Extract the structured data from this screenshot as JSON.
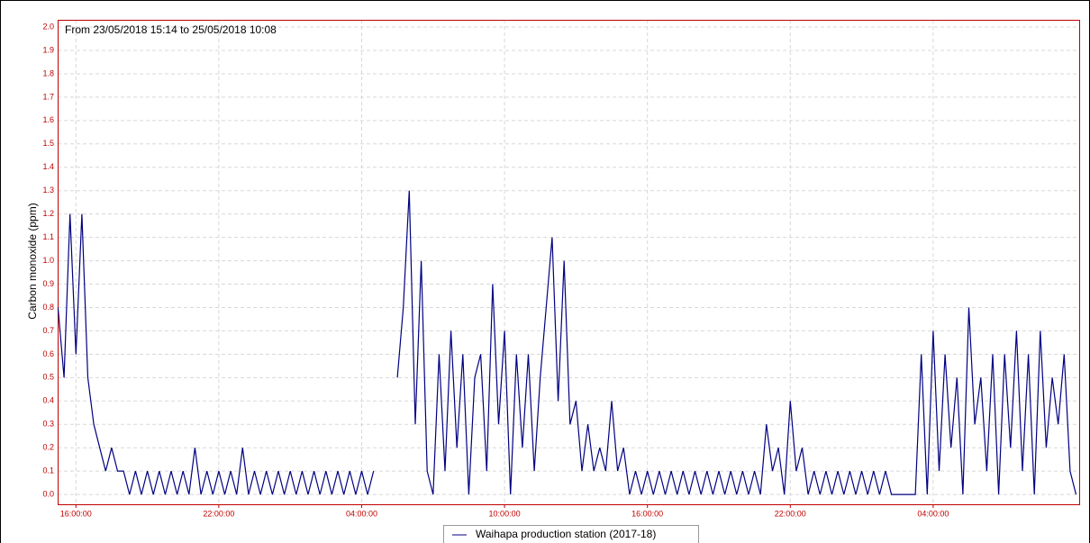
{
  "chart_data": {
    "type": "line",
    "title": "From 23/05/2018 15:14 to 25/05/2018 10:08",
    "y_label": "Carbon monoxide (ppm)",
    "x": [
      15.25,
      15.5,
      15.75,
      16,
      16.25,
      16.5,
      16.75,
      17,
      17.25,
      17.5,
      17.75,
      18,
      18.25,
      18.5,
      18.75,
      19,
      19.25,
      19.5,
      19.75,
      20,
      20.25,
      20.5,
      20.75,
      21,
      21.25,
      21.5,
      21.75,
      22,
      22.25,
      22.5,
      22.75,
      23,
      23.25,
      23.5,
      23.75,
      24,
      24.25,
      24.5,
      24.75,
      25,
      25.25,
      25.5,
      25.75,
      26,
      26.25,
      26.5,
      26.75,
      27,
      27.25,
      27.5,
      27.75,
      28,
      28.25,
      28.5,
      28.75,
      29,
      29.25,
      29.5,
      29.75,
      30,
      30.25,
      30.5,
      30.75,
      31,
      31.25,
      31.5,
      31.75,
      32,
      32.25,
      32.5,
      32.75,
      33,
      33.25,
      33.5,
      33.75,
      34,
      34.25,
      34.5,
      34.75,
      35,
      35.25,
      35.5,
      35.75,
      36,
      36.25,
      36.5,
      36.75,
      37,
      37.25,
      37.5,
      37.75,
      38,
      38.25,
      38.5,
      38.75,
      39,
      39.25,
      39.5,
      39.75,
      40,
      40.25,
      40.5,
      40.75,
      41,
      41.25,
      41.5,
      41.75,
      42,
      42.25,
      42.5,
      42.75,
      43,
      43.25,
      43.5,
      43.75,
      44,
      44.25,
      44.5,
      44.75,
      45,
      45.25,
      45.5,
      45.75,
      46,
      46.25,
      46.5,
      46.75,
      47,
      47.25,
      47.5,
      47.75,
      48,
      48.25,
      48.5,
      48.75,
      49,
      49.25,
      49.5,
      49.75,
      50,
      50.25,
      50.5,
      50.75,
      51,
      51.25,
      51.5,
      51.75,
      52,
      52.25,
      52.5,
      52.75,
      53,
      53.25,
      53.5,
      53.75,
      54,
      54.25,
      54.5,
      54.75,
      55,
      55.25,
      55.5,
      55.75,
      56,
      56.25,
      56.5,
      56.75,
      57,
      57.25,
      57.5,
      57.75,
      58
    ],
    "series": [
      {
        "name": "Waihapa production station (2017-18)",
        "color": "#000080",
        "values": [
          0.8,
          0.5,
          1.2,
          0.6,
          1.2,
          0.5,
          0.3,
          0.2,
          0.1,
          0.2,
          0.1,
          0.1,
          0.0,
          0.1,
          0.0,
          0.1,
          0.0,
          0.1,
          0.0,
          0.1,
          0.0,
          0.1,
          0.0,
          0.2,
          0.0,
          0.1,
          0.0,
          0.1,
          0.0,
          0.1,
          0.0,
          0.2,
          0.0,
          0.1,
          0.0,
          0.1,
          0.0,
          0.1,
          0.0,
          0.1,
          0.0,
          0.1,
          0.0,
          0.1,
          0.0,
          0.1,
          0.0,
          0.1,
          0.0,
          0.1,
          0.0,
          0.1,
          0.0,
          0.1,
          null,
          null,
          null,
          0.5,
          0.8,
          1.3,
          0.3,
          1.0,
          0.1,
          0.0,
          0.6,
          0.1,
          0.7,
          0.2,
          0.6,
          0.0,
          0.5,
          0.6,
          0.1,
          0.9,
          0.3,
          0.7,
          0.0,
          0.6,
          0.2,
          0.6,
          0.1,
          0.5,
          0.8,
          1.1,
          0.4,
          1.0,
          0.3,
          0.4,
          0.1,
          0.3,
          0.1,
          0.2,
          0.1,
          0.4,
          0.1,
          0.2,
          0.0,
          0.1,
          0.0,
          0.1,
          0.0,
          0.1,
          0.0,
          0.1,
          0.0,
          0.1,
          0.0,
          0.1,
          0.0,
          0.1,
          0.0,
          0.1,
          0.0,
          0.1,
          0.0,
          0.1,
          0.0,
          0.1,
          0.0,
          0.3,
          0.1,
          0.2,
          0.0,
          0.4,
          0.1,
          0.2,
          0.0,
          0.1,
          0.0,
          0.1,
          0.0,
          0.1,
          0.0,
          0.1,
          0.0,
          0.1,
          0.0,
          0.1,
          0.0,
          0.1,
          0.0,
          0.0,
          0.0,
          0.0,
          0.0,
          0.6,
          0.0,
          0.7,
          0.1,
          0.6,
          0.2,
          0.5,
          0.0,
          0.8,
          0.3,
          0.5,
          0.1,
          0.6,
          0.0,
          0.6,
          0.2,
          0.7,
          0.1,
          0.6,
          0.0,
          0.7,
          0.2,
          0.5,
          0.3,
          0.6,
          0.1,
          0.0
        ]
      }
    ],
    "xlim": [
      15.233,
      58.133
    ],
    "xticks": [
      {
        "value": 16,
        "label": "16:00:00"
      },
      {
        "value": 22,
        "label": "22:00:00"
      },
      {
        "value": 28,
        "label": "04:00:00"
      },
      {
        "value": 34,
        "label": "10:00:00"
      },
      {
        "value": 40,
        "label": "16:00:00"
      },
      {
        "value": 46,
        "label": "22:00:00"
      },
      {
        "value": 52,
        "label": "04:00:00"
      }
    ],
    "ylim": [
      -0.042,
      2.031
    ],
    "yticks": [
      {
        "value": 0,
        "label": "0.0"
      },
      0.1,
      0.2,
      0.3,
      0.4,
      0.5,
      0.6,
      0.7,
      0.8,
      0.9,
      {
        "value": 1,
        "label": "1.0"
      },
      1.1,
      1.2,
      1.3,
      1.4,
      1.5,
      1.6,
      1.7,
      1.8,
      1.9,
      {
        "value": 2,
        "label": "2.0"
      }
    ],
    "grid": true
  }
}
